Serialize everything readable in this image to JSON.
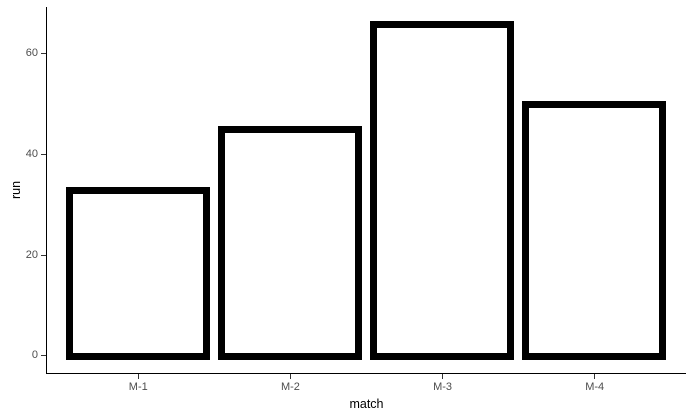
{
  "chart_data": {
    "type": "bar",
    "categories": [
      "M-1",
      "M-2",
      "M-3",
      "M-4"
    ],
    "values": [
      33,
      45,
      66,
      50
    ],
    "title": "",
    "xlabel": "match",
    "ylabel": "run",
    "yticks": [
      0,
      20,
      40,
      60
    ],
    "ylim": [
      -3.3,
      69.3
    ],
    "xlim_units": [
      0.4,
      4.6
    ],
    "bar_width_frac": 0.9,
    "grid": false,
    "legend": "none",
    "style": {
      "background": "#ffffff",
      "bar_fill": "#ffffff",
      "bar_stroke": "#000000",
      "axis_line_color": "#000000",
      "tick_mark_color": "#333333",
      "tick_label_color": "#4d4d4d",
      "axis_title_color": "#000000"
    }
  }
}
